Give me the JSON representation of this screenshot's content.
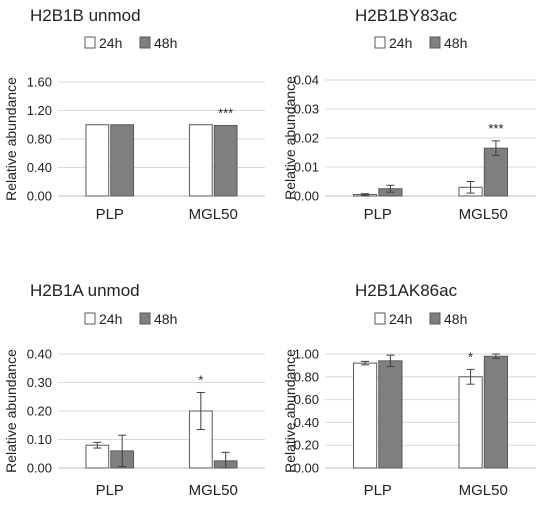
{
  "chart_data": [
    {
      "type": "bar",
      "title": "H2B1B unmod",
      "xlabel": "",
      "ylabel": "Relative abundance",
      "categories": [
        "PLP",
        "MGL50"
      ],
      "series": [
        {
          "name": "24h",
          "values": [
            1.0,
            1.0
          ],
          "errors": [
            0.0,
            0.0
          ]
        },
        {
          "name": "48h",
          "values": [
            1.0,
            0.99
          ],
          "errors": [
            0.0,
            0.0
          ]
        }
      ],
      "ylim": [
        0,
        1.6
      ],
      "yticks": [
        "0.00",
        "0.40",
        "0.80",
        "1.20",
        "1.60"
      ],
      "annotations": [
        {
          "category": "MGL50",
          "series": "48h",
          "text": "***"
        }
      ],
      "legend": "top",
      "grid": true
    },
    {
      "type": "bar",
      "title": "H2B1BY83ac",
      "xlabel": "",
      "ylabel": "Relative abundance",
      "categories": [
        "PLP",
        "MGL50"
      ],
      "series": [
        {
          "name": "24h",
          "values": [
            0.0005,
            0.003
          ],
          "errors": [
            0.0003,
            0.002
          ]
        },
        {
          "name": "48h",
          "values": [
            0.0025,
            0.0165
          ],
          "errors": [
            0.0012,
            0.0025
          ]
        }
      ],
      "ylim": [
        0,
        0.04
      ],
      "yticks": [
        "0.00",
        "0.01",
        "0.02",
        "0.03",
        "0.04"
      ],
      "annotations": [
        {
          "category": "MGL50",
          "series": "48h",
          "text": "***"
        }
      ],
      "legend": "top",
      "grid": true
    },
    {
      "type": "bar",
      "title": "H2B1A unmod",
      "xlabel": "",
      "ylabel": "Relative abundance",
      "categories": [
        "PLP",
        "MGL50"
      ],
      "series": [
        {
          "name": "24h",
          "values": [
            0.08,
            0.2
          ],
          "errors": [
            0.01,
            0.065
          ]
        },
        {
          "name": "48h",
          "values": [
            0.06,
            0.025
          ],
          "errors": [
            0.055,
            0.03
          ]
        }
      ],
      "ylim": [
        0,
        0.4
      ],
      "yticks": [
        "0.00",
        "0.10",
        "0.20",
        "0.30",
        "0.40"
      ],
      "annotations": [
        {
          "category": "MGL50",
          "series": "24h",
          "text": "*"
        }
      ],
      "legend": "top",
      "grid": true
    },
    {
      "type": "bar",
      "title": "H2B1AK86ac",
      "xlabel": "",
      "ylabel": "Relative abundance",
      "categories": [
        "PLP",
        "MGL50"
      ],
      "series": [
        {
          "name": "24h",
          "values": [
            0.92,
            0.8
          ],
          "errors": [
            0.015,
            0.065
          ]
        },
        {
          "name": "48h",
          "values": [
            0.94,
            0.98
          ],
          "errors": [
            0.05,
            0.02
          ]
        }
      ],
      "ylim": [
        0,
        1.0
      ],
      "yticks": [
        "0.00",
        "0.20",
        "0.40",
        "0.60",
        "0.80",
        "1.00"
      ],
      "annotations": [
        {
          "category": "MGL50",
          "series": "24h",
          "text": "*"
        }
      ],
      "legend": "top",
      "grid": true
    }
  ],
  "colors": {
    "series_24h": "#ffffff",
    "series_48h": "#7f7f7f",
    "bar_stroke": "#595959",
    "gridline": "#d9d9d9",
    "axis": "#bfbfbf",
    "text": "#222222",
    "error_bar": "#404040"
  }
}
